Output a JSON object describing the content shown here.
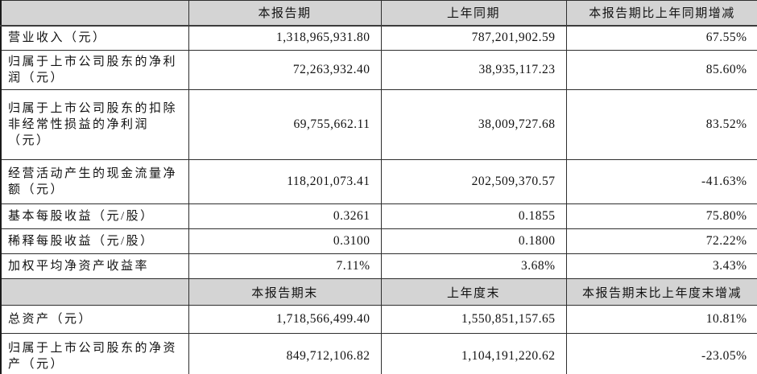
{
  "table": {
    "colors": {
      "header_bg": "#d4d4d4",
      "body_bg": "#ffffff",
      "border": "#2e2e2e",
      "text": "#121212"
    },
    "section1": {
      "headers": [
        "本报告期",
        "上年同期",
        "本报告期比上年同期增减"
      ],
      "rows": [
        {
          "label": "营业收入（元）",
          "current": "1,318,965,931.80",
          "prior": "787,201,902.59",
          "change": "67.55%"
        },
        {
          "label": "归属于上市公司股东的净利润（元）",
          "current": "72,263,932.40",
          "prior": "38,935,117.23",
          "change": "85.60%"
        },
        {
          "label": "归属于上市公司股东的扣除非经常性损益的净利润（元）",
          "current": "69,755,662.11",
          "prior": "38,009,727.68",
          "change": "83.52%"
        },
        {
          "label": "经营活动产生的现金流量净额（元）",
          "current": "118,201,073.41",
          "prior": "202,509,370.57",
          "change": "-41.63%"
        },
        {
          "label": "基本每股收益（元/股）",
          "current": "0.3261",
          "prior": "0.1855",
          "change": "75.80%"
        },
        {
          "label": "稀释每股收益（元/股）",
          "current": "0.3100",
          "prior": "0.1800",
          "change": "72.22%"
        },
        {
          "label": "加权平均净资产收益率",
          "current": "7.11%",
          "prior": "3.68%",
          "change": "3.43%"
        }
      ]
    },
    "section2": {
      "headers": [
        "本报告期末",
        "上年度末",
        "本报告期末比上年度末增减"
      ],
      "rows": [
        {
          "label": "总资产（元）",
          "current": "1,718,566,499.40",
          "prior": "1,550,851,157.65",
          "change": "10.81%"
        },
        {
          "label": "归属于上市公司股东的净资产（元）",
          "current": "849,712,106.82",
          "prior": "1,104,191,220.62",
          "change": "-23.05%"
        }
      ]
    }
  }
}
